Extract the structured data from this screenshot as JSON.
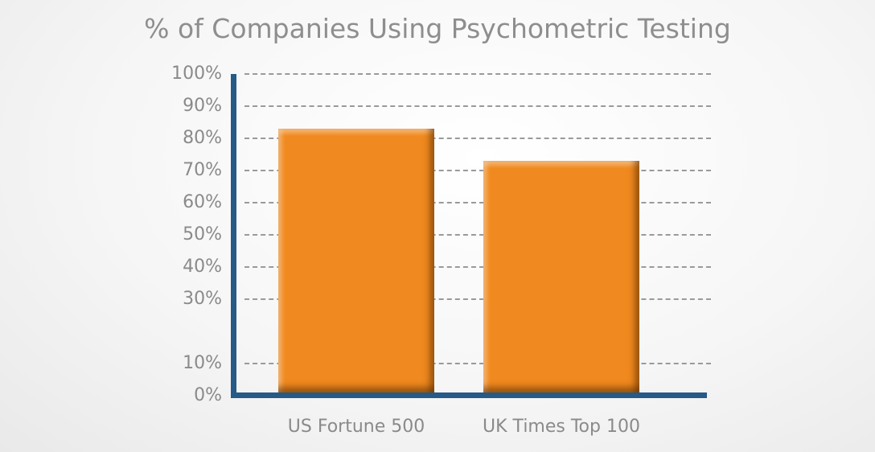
{
  "chart_data": {
    "type": "bar",
    "title": "% of Companies Using Psychometric Testing",
    "categories": [
      "US Fortune 500",
      "UK Times Top 100"
    ],
    "values": [
      83,
      73
    ],
    "xlabel": "",
    "ylabel": "",
    "ylim": [
      0,
      100
    ],
    "yticks": [
      "0%",
      "10%",
      "30%",
      "40%",
      "50%",
      "60%",
      "70%",
      "80%",
      "90%",
      "100%"
    ],
    "ytick_labels_all": [
      "100%",
      "90%",
      "80%",
      "70%",
      "60%",
      "50%",
      "40%",
      "30%",
      "10%",
      "0%"
    ],
    "grid": true,
    "legend": null,
    "colors": {
      "bar": "#f0891f",
      "axis": "#265a87",
      "grid": "#9a9a9a",
      "text": "#8a8a8a"
    }
  }
}
